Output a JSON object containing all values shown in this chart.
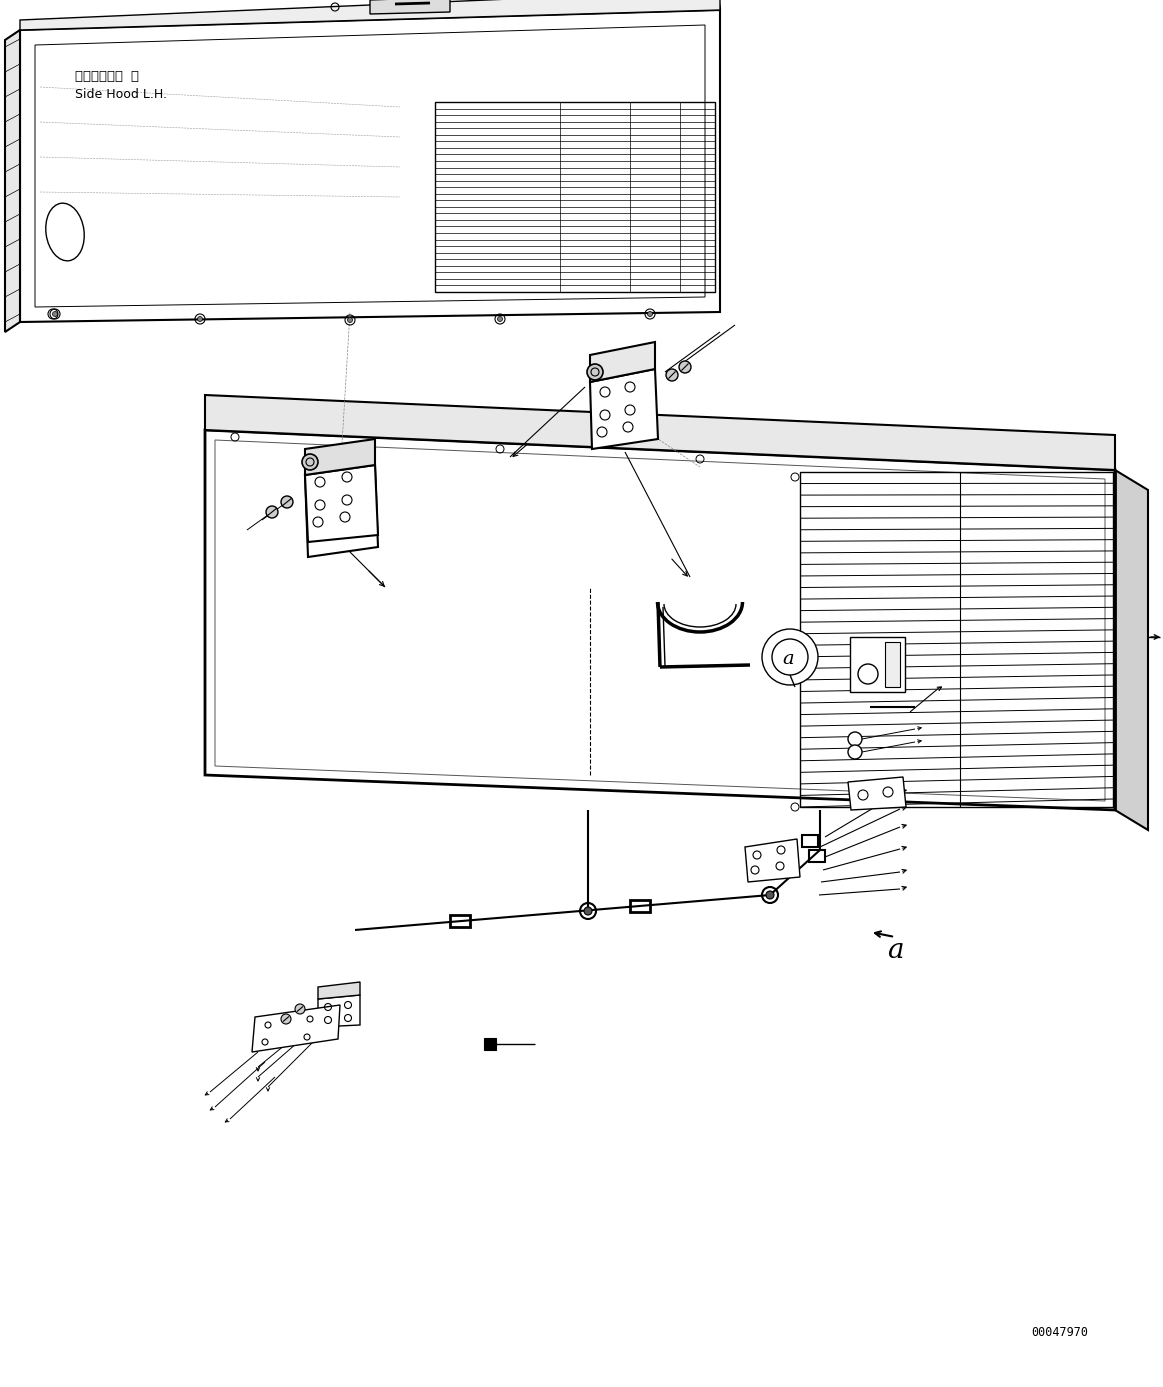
{
  "bg_color": "#ffffff",
  "line_color": "#000000",
  "fig_width": 11.63,
  "fig_height": 13.87,
  "dpi": 100,
  "label_jp": "サイドフード 左",
  "label_en": "Side Hood L.H.",
  "part_id": "00047970",
  "annotation_a": "a"
}
